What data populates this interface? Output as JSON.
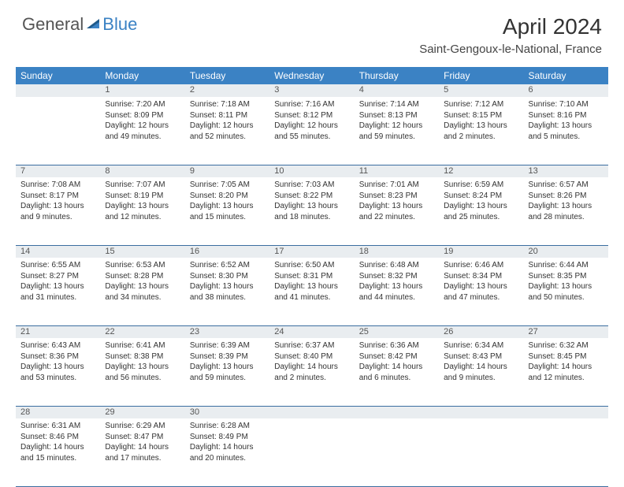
{
  "logo": {
    "text1": "General",
    "text2": "Blue"
  },
  "title": "April 2024",
  "location": "Saint-Gengoux-le-National, France",
  "weekdays": [
    "Sunday",
    "Monday",
    "Tuesday",
    "Wednesday",
    "Thursday",
    "Friday",
    "Saturday"
  ],
  "colors": {
    "header_bg": "#3b82c4",
    "header_text": "#ffffff",
    "daynum_bg": "#e9edf0",
    "border": "#3b6ea0",
    "text": "#333333"
  },
  "weeks": [
    [
      {
        "n": "",
        "sr": "",
        "ss": "",
        "dl": ""
      },
      {
        "n": "1",
        "sr": "7:20 AM",
        "ss": "8:09 PM",
        "dl": "12 hours and 49 minutes."
      },
      {
        "n": "2",
        "sr": "7:18 AM",
        "ss": "8:11 PM",
        "dl": "12 hours and 52 minutes."
      },
      {
        "n": "3",
        "sr": "7:16 AM",
        "ss": "8:12 PM",
        "dl": "12 hours and 55 minutes."
      },
      {
        "n": "4",
        "sr": "7:14 AM",
        "ss": "8:13 PM",
        "dl": "12 hours and 59 minutes."
      },
      {
        "n": "5",
        "sr": "7:12 AM",
        "ss": "8:15 PM",
        "dl": "13 hours and 2 minutes."
      },
      {
        "n": "6",
        "sr": "7:10 AM",
        "ss": "8:16 PM",
        "dl": "13 hours and 5 minutes."
      }
    ],
    [
      {
        "n": "7",
        "sr": "7:08 AM",
        "ss": "8:17 PM",
        "dl": "13 hours and 9 minutes."
      },
      {
        "n": "8",
        "sr": "7:07 AM",
        "ss": "8:19 PM",
        "dl": "13 hours and 12 minutes."
      },
      {
        "n": "9",
        "sr": "7:05 AM",
        "ss": "8:20 PM",
        "dl": "13 hours and 15 minutes."
      },
      {
        "n": "10",
        "sr": "7:03 AM",
        "ss": "8:22 PM",
        "dl": "13 hours and 18 minutes."
      },
      {
        "n": "11",
        "sr": "7:01 AM",
        "ss": "8:23 PM",
        "dl": "13 hours and 22 minutes."
      },
      {
        "n": "12",
        "sr": "6:59 AM",
        "ss": "8:24 PM",
        "dl": "13 hours and 25 minutes."
      },
      {
        "n": "13",
        "sr": "6:57 AM",
        "ss": "8:26 PM",
        "dl": "13 hours and 28 minutes."
      }
    ],
    [
      {
        "n": "14",
        "sr": "6:55 AM",
        "ss": "8:27 PM",
        "dl": "13 hours and 31 minutes."
      },
      {
        "n": "15",
        "sr": "6:53 AM",
        "ss": "8:28 PM",
        "dl": "13 hours and 34 minutes."
      },
      {
        "n": "16",
        "sr": "6:52 AM",
        "ss": "8:30 PM",
        "dl": "13 hours and 38 minutes."
      },
      {
        "n": "17",
        "sr": "6:50 AM",
        "ss": "8:31 PM",
        "dl": "13 hours and 41 minutes."
      },
      {
        "n": "18",
        "sr": "6:48 AM",
        "ss": "8:32 PM",
        "dl": "13 hours and 44 minutes."
      },
      {
        "n": "19",
        "sr": "6:46 AM",
        "ss": "8:34 PM",
        "dl": "13 hours and 47 minutes."
      },
      {
        "n": "20",
        "sr": "6:44 AM",
        "ss": "8:35 PM",
        "dl": "13 hours and 50 minutes."
      }
    ],
    [
      {
        "n": "21",
        "sr": "6:43 AM",
        "ss": "8:36 PM",
        "dl": "13 hours and 53 minutes."
      },
      {
        "n": "22",
        "sr": "6:41 AM",
        "ss": "8:38 PM",
        "dl": "13 hours and 56 minutes."
      },
      {
        "n": "23",
        "sr": "6:39 AM",
        "ss": "8:39 PM",
        "dl": "13 hours and 59 minutes."
      },
      {
        "n": "24",
        "sr": "6:37 AM",
        "ss": "8:40 PM",
        "dl": "14 hours and 2 minutes."
      },
      {
        "n": "25",
        "sr": "6:36 AM",
        "ss": "8:42 PM",
        "dl": "14 hours and 6 minutes."
      },
      {
        "n": "26",
        "sr": "6:34 AM",
        "ss": "8:43 PM",
        "dl": "14 hours and 9 minutes."
      },
      {
        "n": "27",
        "sr": "6:32 AM",
        "ss": "8:45 PM",
        "dl": "14 hours and 12 minutes."
      }
    ],
    [
      {
        "n": "28",
        "sr": "6:31 AM",
        "ss": "8:46 PM",
        "dl": "14 hours and 15 minutes."
      },
      {
        "n": "29",
        "sr": "6:29 AM",
        "ss": "8:47 PM",
        "dl": "14 hours and 17 minutes."
      },
      {
        "n": "30",
        "sr": "6:28 AM",
        "ss": "8:49 PM",
        "dl": "14 hours and 20 minutes."
      },
      {
        "n": "",
        "sr": "",
        "ss": "",
        "dl": ""
      },
      {
        "n": "",
        "sr": "",
        "ss": "",
        "dl": ""
      },
      {
        "n": "",
        "sr": "",
        "ss": "",
        "dl": ""
      },
      {
        "n": "",
        "sr": "",
        "ss": "",
        "dl": ""
      }
    ]
  ]
}
